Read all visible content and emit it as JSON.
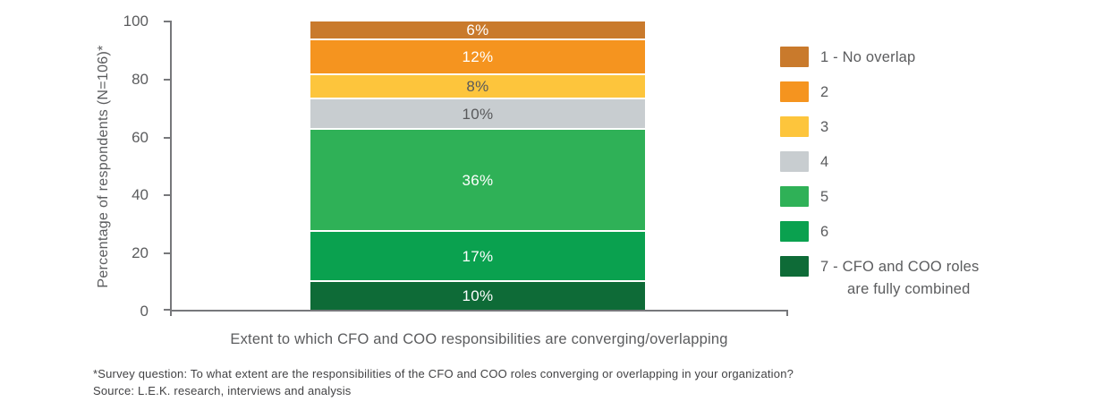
{
  "chart_data": {
    "type": "bar",
    "stacked": true,
    "orientation": "vertical",
    "xlabel": "Extent to which CFO and COO responsibilities are converging/overlapping",
    "ylabel": "Percentage of respondents (N=106)*",
    "ylim": [
      0,
      100
    ],
    "yticks": [
      "100",
      "80",
      "60",
      "40",
      "20",
      "0"
    ],
    "grid": false,
    "legend_position": "right",
    "series": [
      {
        "name": "1 - No overlap",
        "value": 6,
        "label": "6%",
        "color": "#C97A2C",
        "label_color": "#FFFFFF"
      },
      {
        "name": "2",
        "value": 12,
        "label": "12%",
        "color": "#F5941F",
        "label_color": "#FFFFFF"
      },
      {
        "name": "3",
        "value": 8,
        "label": "8%",
        "color": "#FDC53C",
        "label_color": "#58595B"
      },
      {
        "name": "4",
        "value": 10,
        "label": "10%",
        "color": "#C8CDD0",
        "label_color": "#58595B"
      },
      {
        "name": "5",
        "value": 36,
        "label": "36%",
        "color": "#2FB157",
        "label_color": "#FFFFFF"
      },
      {
        "name": "6",
        "value": 17,
        "label": "17%",
        "color": "#0AA14F",
        "label_color": "#FFFFFF"
      },
      {
        "name": "7 - CFO and COO roles are fully combined",
        "value": 10,
        "label": "10%",
        "color": "#0E6B37",
        "label_color": "#FFFFFF"
      }
    ],
    "legend": [
      {
        "line1": "1 - No overlap",
        "line2": ""
      },
      {
        "line1": "2",
        "line2": ""
      },
      {
        "line1": "3",
        "line2": ""
      },
      {
        "line1": "4",
        "line2": ""
      },
      {
        "line1": "5",
        "line2": ""
      },
      {
        "line1": "6",
        "line2": ""
      },
      {
        "line1": "7 - CFO and COO roles",
        "line2": "are fully combined"
      }
    ]
  },
  "footnote": {
    "line1": "*Survey question: To what extent are the responsibilities of the CFO and COO roles converging or overlapping in your organization?",
    "line2": "Source: L.E.K. research, interviews and analysis"
  },
  "axis_color": "#77787B"
}
